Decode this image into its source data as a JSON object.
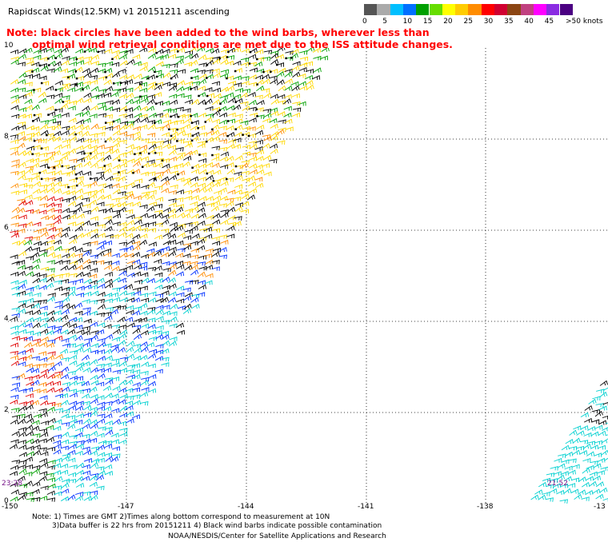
{
  "title": "Rapidscat Winds(12.5KM) v1 20151211 ascending",
  "note_line1": "Note: black circles have been added to the wind barbs, wherever less than",
  "note_line2": "optimal wind retrieval conditions are met due to the ISS attitude changes.",
  "legend": {
    "ticks": [
      "0",
      "5",
      "10",
      "15",
      "20",
      "25",
      "30",
      "35",
      "40",
      "45"
    ],
    "top_label": ">50",
    "units": "knots",
    "colors": [
      "#555555",
      "#aaaaaa",
      "#00bfff",
      "#0070ff",
      "#00a000",
      "#66dd00",
      "#ffff00",
      "#ffcc00",
      "#ff8c00",
      "#ff0000",
      "#d00030",
      "#8b4513",
      "#c04080",
      "#ff00ff",
      "#8a2be2",
      "#4b0082"
    ]
  },
  "lat_labels": [
    "10",
    "8",
    "6",
    "4",
    "2",
    "0"
  ],
  "lon_labels": [
    "-150",
    "-147",
    "-144",
    "-141",
    "-138",
    "-13"
  ],
  "time_left": "23:28",
  "time_right": "21:52",
  "footer_line1": "Note: 1) Times are GMT 2)Times along bottom correspond to measurement at 10N",
  "footer_line2": "3)Data buffer is 22 hrs from 20151211 4) Black wind barbs indicate possible contamination",
  "credit": "NOAA/NESDIS/Center for Satellite Applications and Research",
  "map_data": {
    "lat_range": [
      0,
      10
    ],
    "lon_range": [
      -150,
      -135
    ],
    "grid": "dotted",
    "barb_colors": {
      "calm": "#000000",
      "light": "#00d0d0",
      "moderate": "#0030ff",
      "fresh": "#00a000",
      "strong": "#ffd800",
      "gale": "#ff8c00",
      "storm": "#e00000",
      "contam": "#000000"
    }
  }
}
